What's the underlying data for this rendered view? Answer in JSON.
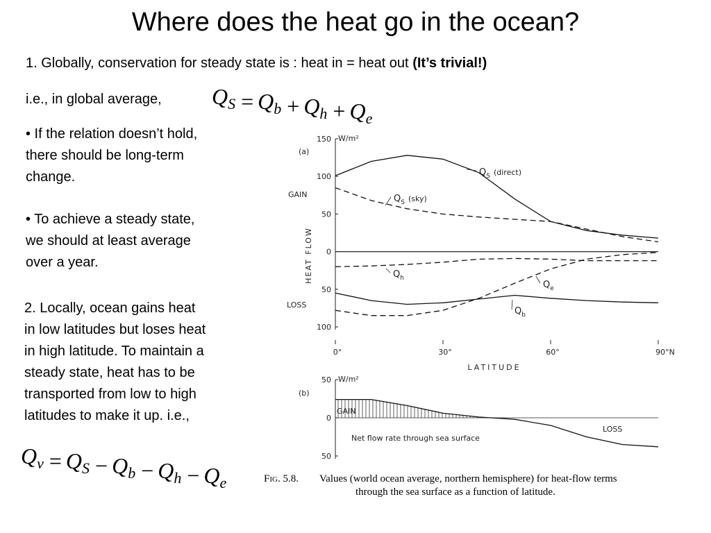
{
  "title": "Where does the heat go in the ocean?",
  "point1": {
    "text": "1. Globally, conservation for steady state is : heat in = heat out",
    "emphasis": "(It’s trivial!)"
  },
  "point1_lead": "i.e., in global average,",
  "equation1": [
    {
      "sym": "Q",
      "sub": "S"
    },
    {
      "op": "=",
      "sym": "Q",
      "sub": "b"
    },
    {
      "op": "+",
      "sym": "Q",
      "sub": "h"
    },
    {
      "op": "+",
      "sym": "Q",
      "sub": "e"
    }
  ],
  "bullets": [
    [
      "• If the relation doesn’t hold,",
      "there should be long-term",
      "change."
    ],
    [
      "• To achieve a steady state,",
      "we should at least average",
      "over a year."
    ]
  ],
  "point2": [
    "2. Locally, ocean gains heat",
    "in low latitudes but loses heat",
    "in high latitude. To maintain a",
    "steady state, heat has to be",
    "transported from low to high",
    "latitudes to make it up. i.e.,"
  ],
  "equation2": [
    {
      "sym": "Q",
      "sub": "v"
    },
    {
      "op": "=",
      "sym": "Q",
      "sub": "S"
    },
    {
      "op": "−",
      "sym": "Q",
      "sub": "b"
    },
    {
      "op": "−",
      "sym": "Q",
      "sub": "h"
    },
    {
      "op": "−",
      "sym": "Q",
      "sub": "e"
    }
  ],
  "chart_data": [
    {
      "type": "line",
      "panel": "(a)",
      "unit": "W/m²",
      "ylabel": "HEAT FLOW",
      "gain_label": "GAIN",
      "loss_label": "LOSS",
      "xlabel": "LATITUDE",
      "x": [
        0,
        10,
        20,
        30,
        40,
        50,
        60,
        70,
        80,
        90
      ],
      "xlim": [
        0,
        90
      ],
      "xticks": [
        {
          "value": 0,
          "label": "0°"
        },
        {
          "value": 30,
          "label": "30°"
        },
        {
          "value": 60,
          "label": "60°"
        },
        {
          "value": 90,
          "label": "90°N"
        }
      ],
      "ylim": [
        -100,
        150
      ],
      "yticks": [
        150,
        100,
        50,
        0,
        {
          "value": -50,
          "label": "50"
        },
        {
          "value": -100,
          "label": "100"
        }
      ],
      "series": [
        {
          "name": "Q",
          "sub": "S",
          "note": "(direct)",
          "color": "#111111",
          "dashed": false,
          "values": [
            101,
            120,
            128,
            123,
            105,
            70,
            40,
            28,
            22,
            18
          ]
        },
        {
          "name": "Q",
          "sub": "S",
          "note": "(sky)",
          "color": "#111111",
          "dashed": true,
          "values": [
            85,
            68,
            57,
            50,
            46,
            43,
            40,
            30,
            20,
            13
          ]
        },
        {
          "name": "Q",
          "sub": "h",
          "color": "#111111",
          "dashed": true,
          "values": [
            -20,
            -19,
            -17,
            -14,
            -10,
            -9,
            -10,
            -12,
            -12,
            -12
          ]
        },
        {
          "name": "Q",
          "sub": "e",
          "color": "#111111",
          "dashed": true,
          "values": [
            -78,
            -85,
            -85,
            -78,
            -62,
            -42,
            -23,
            -10,
            -4,
            -1
          ]
        },
        {
          "name": "Q",
          "sub": "b",
          "color": "#111111",
          "dashed": false,
          "values": [
            -55,
            -65,
            -70,
            -68,
            -63,
            -58,
            -62,
            -65,
            -67,
            -68
          ]
        }
      ]
    },
    {
      "type": "area",
      "panel": "(b)",
      "unit": "W/m²",
      "gain_label": "GAIN",
      "loss_label": "LOSS",
      "annotation": "Net flow rate through sea surface",
      "x": [
        0,
        10,
        20,
        30,
        40,
        50,
        60,
        70,
        80,
        90
      ],
      "xlim": [
        0,
        90
      ],
      "ylim": [
        -50,
        50
      ],
      "yticks": [
        50,
        0,
        {
          "value": -50,
          "label": "50"
        }
      ],
      "series": [
        {
          "color": "#111111",
          "values": [
            24,
            24,
            16,
            6,
            1,
            -2,
            -10,
            -25,
            -35,
            -38
          ]
        }
      ]
    }
  ],
  "caption": {
    "label": "Fig. 5.8.",
    "lines": [
      "Values (world ocean average, northern hemisphere) for heat-flow terms",
      "through the sea surface as a function of latitude."
    ]
  }
}
